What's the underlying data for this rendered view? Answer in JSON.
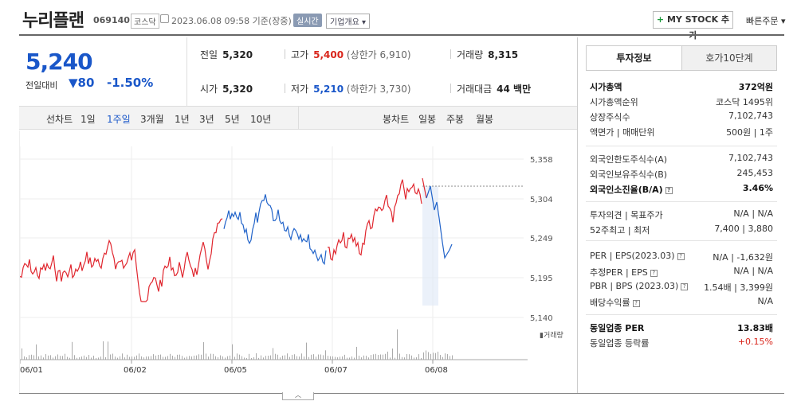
{
  "header": {
    "name": "누리플랜",
    "code": "069140",
    "market": "코스닥",
    "datetime": "2023.06.08 09:58 기준(장중)",
    "realtime": "실시간",
    "company_info": "기업개요",
    "mystock": "MY STOCK 추가",
    "quick_order": "빠른주문"
  },
  "price": {
    "current": "5,240",
    "diff_label": "전일대비",
    "diff": "80",
    "pct": "-1.50%"
  },
  "info": {
    "prev_label": "전일",
    "prev": "5,320",
    "high_label": "고가",
    "high": "5,400",
    "upper": "(상한가 6,910)",
    "volume_label": "거래량",
    "volume": "8,315",
    "open_label": "시가",
    "open": "5,320",
    "low_label": "저가",
    "low": "5,210",
    "lower": "(하한가 3,730)",
    "amount_label": "거래대금",
    "amount": "44 백만"
  },
  "period": {
    "line_label": "선차트",
    "line_items": [
      "1일",
      "1주일",
      "3개월",
      "1년",
      "3년",
      "5년",
      "10년"
    ],
    "active": "1주일",
    "candle_label": "봉차트",
    "candle_items": [
      "일봉",
      "주봉",
      "월봉"
    ]
  },
  "chart_data": {
    "type": "line",
    "y_ticks": [
      "5,358",
      "5,304",
      "5,249",
      "5,195",
      "5,140"
    ],
    "ylim": [
      5140,
      5358
    ],
    "x_ticks": [
      "06/01",
      "06/02",
      "06/05",
      "06/07",
      "06/08"
    ],
    "volume_label": "거래량",
    "colors": {
      "up": "#e0262e",
      "down": "#2163c9"
    }
  },
  "panel": {
    "tab_active": "투자정보",
    "tab_other": "호가10단계",
    "rows1": [
      {
        "label": "시가총액",
        "value": "372억원",
        "bold": true
      },
      {
        "label": "시가총액순위",
        "value": "코스닥 1495위"
      },
      {
        "label": "상장주식수",
        "value": "7,102,743"
      },
      {
        "label": "액면가 | 매매단위",
        "value": "500원 | 1주"
      }
    ],
    "rows2": [
      {
        "label": "외국인한도주식수(A)",
        "value": "7,102,743"
      },
      {
        "label": "외국인보유주식수(B)",
        "value": "245,453"
      },
      {
        "label": "외국인소진율(B/A)",
        "value": "3.46%",
        "bold": true
      }
    ],
    "rows3": [
      {
        "label": "투자의견 | 목표주가",
        "value": "N/A | N/A"
      },
      {
        "label": "52주최고 | 최저",
        "value": "7,400 | 3,880"
      }
    ],
    "rows4": [
      {
        "label": "PER | EPS(2023.03)",
        "value": "N/A | -1,632원"
      },
      {
        "label": "추정PER | EPS",
        "value": "N/A | N/A"
      },
      {
        "label": "PBR | BPS (2023.03)",
        "value": "1.54배 | 3,399원"
      },
      {
        "label": "배당수익률",
        "value": "N/A"
      }
    ],
    "rows5": [
      {
        "label": "동일업종 PER",
        "value": "13.83배",
        "bold": true
      },
      {
        "label": "동일업종 등락률",
        "value": "+0.15%"
      }
    ]
  }
}
